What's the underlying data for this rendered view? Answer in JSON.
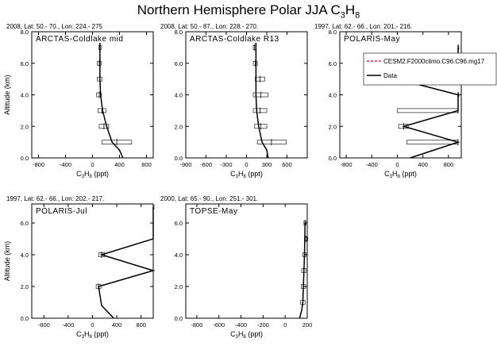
{
  "figure": {
    "title_main": "Northern Hemisphere Polar JJA C",
    "title_sub1": "3",
    "title_mid": "H",
    "title_sub2": "8"
  },
  "chart_data": [
    {
      "type": "line",
      "header": "2008, Lat:  50.- 70., Lon: 224.- 275",
      "label": "ARCTAS-Coldlake mid",
      "xlabel": "C3H8 (ppt)",
      "ylabel": "Altitude (km)",
      "xlim": [
        -900,
        900
      ],
      "ylim": [
        0,
        8
      ],
      "xticks": [
        -800,
        -400,
        0,
        400,
        800
      ],
      "yticks": [
        0,
        2,
        4,
        6,
        8
      ],
      "model": {
        "x": [
          450,
          400,
          290,
          210,
          150,
          120,
          110,
          110,
          110,
          110
        ],
        "y": [
          0,
          0.5,
          1,
          2,
          3,
          4,
          5,
          6,
          7,
          7.3
        ]
      },
      "obs": [
        {
          "y": 7.0,
          "mean": 110,
          "lo": 90,
          "hi": 130
        },
        {
          "y": 6.0,
          "mean": 100,
          "lo": 70,
          "hi": 130
        },
        {
          "y": 5.0,
          "mean": 110,
          "lo": 70,
          "hi": 140
        },
        {
          "y": 4.0,
          "mean": 100,
          "lo": 60,
          "hi": 130
        },
        {
          "y": 3.0,
          "mean": 140,
          "lo": 80,
          "hi": 200
        },
        {
          "y": 2.0,
          "mean": 170,
          "lo": 100,
          "hi": 240
        },
        {
          "y": 1.0,
          "mean": 360,
          "lo": 140,
          "hi": 580
        }
      ]
    },
    {
      "type": "line",
      "header": "2008, Lat:  50.- 87., Lon: 228.- 270.",
      "label": "ARCTAS-Coldlake R13",
      "xlabel": "C3H8 (ppt)",
      "ylabel": "",
      "xlim": [
        -900,
        900
      ],
      "ylim": [
        0,
        8
      ],
      "xticks": [
        -900,
        -600,
        -300,
        0,
        300,
        600
      ],
      "yticks": [
        0,
        2,
        4,
        6,
        8
      ],
      "model": {
        "x": [
          320,
          300,
          230,
          180,
          150,
          140,
          140,
          140,
          140,
          140
        ],
        "y": [
          0,
          0.5,
          1,
          2,
          3,
          4,
          5,
          6,
          7,
          7.3
        ]
      },
      "obs": [
        {
          "y": 7.0,
          "mean": 120,
          "lo": 100,
          "hi": 140
        },
        {
          "y": 6.0,
          "mean": 130,
          "lo": 100,
          "hi": 160
        },
        {
          "y": 5.0,
          "mean": 200,
          "lo": 130,
          "hi": 270
        },
        {
          "y": 4.0,
          "mean": 210,
          "lo": 100,
          "hi": 320
        },
        {
          "y": 3.0,
          "mean": 200,
          "lo": 100,
          "hi": 300
        },
        {
          "y": 2.0,
          "mean": 210,
          "lo": 120,
          "hi": 300
        },
        {
          "y": 1.0,
          "mean": 370,
          "lo": 160,
          "hi": 590
        }
      ]
    },
    {
      "type": "line",
      "header": "1997, Lat: 62.- 66., Lon: 201.- 216.",
      "label": "POLARIS-May",
      "xlabel": "C3H8 (ppt)",
      "ylabel": "",
      "xlim": [
        -900,
        1000
      ],
      "ylim": [
        0,
        8
      ],
      "xticks": [
        -800,
        -400,
        0,
        400,
        800
      ],
      "yticks": [
        0,
        2,
        4,
        6,
        8
      ],
      "model": {
        "x": [
          200,
          950,
          100,
          950,
          950,
          0,
          950,
          950
        ],
        "y": [
          0,
          1,
          2,
          3,
          4,
          5,
          6,
          7
        ]
      },
      "obs": [
        {
          "y": 7.0,
          "mean": 950,
          "lo": 950,
          "hi": 950
        },
        {
          "y": 6.0,
          "mean": 950,
          "lo": 950,
          "hi": 950
        },
        {
          "y": 5.0,
          "mean": 0,
          "lo": 0,
          "hi": 0
        },
        {
          "y": 4.0,
          "mean": 950,
          "lo": 950,
          "hi": 950
        },
        {
          "y": 3.0,
          "mean": 950,
          "lo": 0,
          "hi": 950
        },
        {
          "y": 2.0,
          "mean": 100,
          "lo": 20,
          "hi": 170
        },
        {
          "y": 1.0,
          "mean": 950,
          "lo": 150,
          "hi": 950
        }
      ],
      "legend": {
        "model_label": "CESM2.F2000climo.C96.C96.mg17",
        "data_label": "Data",
        "model_color": "#e8000b",
        "data_color": "#000000"
      }
    },
    {
      "type": "line",
      "header": "1997, Lat: 62.- 66., Lon: 202.- 217.",
      "label": "POLARIS-Jul",
      "xlabel": "C3H8 (ppt)",
      "ylabel": "Altitude (km)",
      "xlim": [
        -1000,
        1000
      ],
      "ylim": [
        0,
        7.2
      ],
      "xticks": [
        -800,
        -400,
        0,
        400,
        800
      ],
      "yticks": [
        0,
        2,
        4,
        6
      ],
      "model": {
        "x": [
          350,
          150,
          100,
          1000,
          150,
          1000,
          1000
        ],
        "y": [
          0,
          0.8,
          2,
          3,
          4,
          5,
          7
        ]
      },
      "obs": [
        {
          "y": 7.0,
          "mean": 1000,
          "lo": 1000,
          "hi": 1000
        },
        {
          "y": 4.0,
          "mean": 150,
          "lo": 100,
          "hi": 200
        },
        {
          "y": 2.0,
          "mean": 100,
          "lo": 60,
          "hi": 140
        }
      ]
    },
    {
      "type": "line",
      "header": "2000, Lat: 65.- 90., Lon: 251.- 301.",
      "label": "TOPSE-May",
      "xlabel": "C3H8 (ppt)",
      "ylabel": "",
      "xlim": [
        -900,
        200
      ],
      "ylim": [
        0,
        7.2
      ],
      "xticks": [
        -800,
        -600,
        -400,
        -200,
        0,
        200
      ],
      "yticks": [
        0,
        2,
        4,
        6
      ],
      "model": {
        "x": [
          130,
          150,
          160,
          165,
          170,
          175,
          180
        ],
        "y": [
          0,
          0.5,
          1,
          2,
          3,
          4,
          6
        ]
      },
      "obs": [
        {
          "y": 6.0,
          "mean": 180,
          "lo": 170,
          "hi": 190
        },
        {
          "y": 5.0,
          "mean": 190,
          "lo": 175,
          "hi": 205
        },
        {
          "y": 4.0,
          "mean": 175,
          "lo": 160,
          "hi": 190
        },
        {
          "y": 3.0,
          "mean": 170,
          "lo": 150,
          "hi": 190
        },
        {
          "y": 2.0,
          "mean": 165,
          "lo": 145,
          "hi": 185
        },
        {
          "y": 1.0,
          "mean": 160,
          "lo": 140,
          "hi": 180
        }
      ]
    }
  ]
}
